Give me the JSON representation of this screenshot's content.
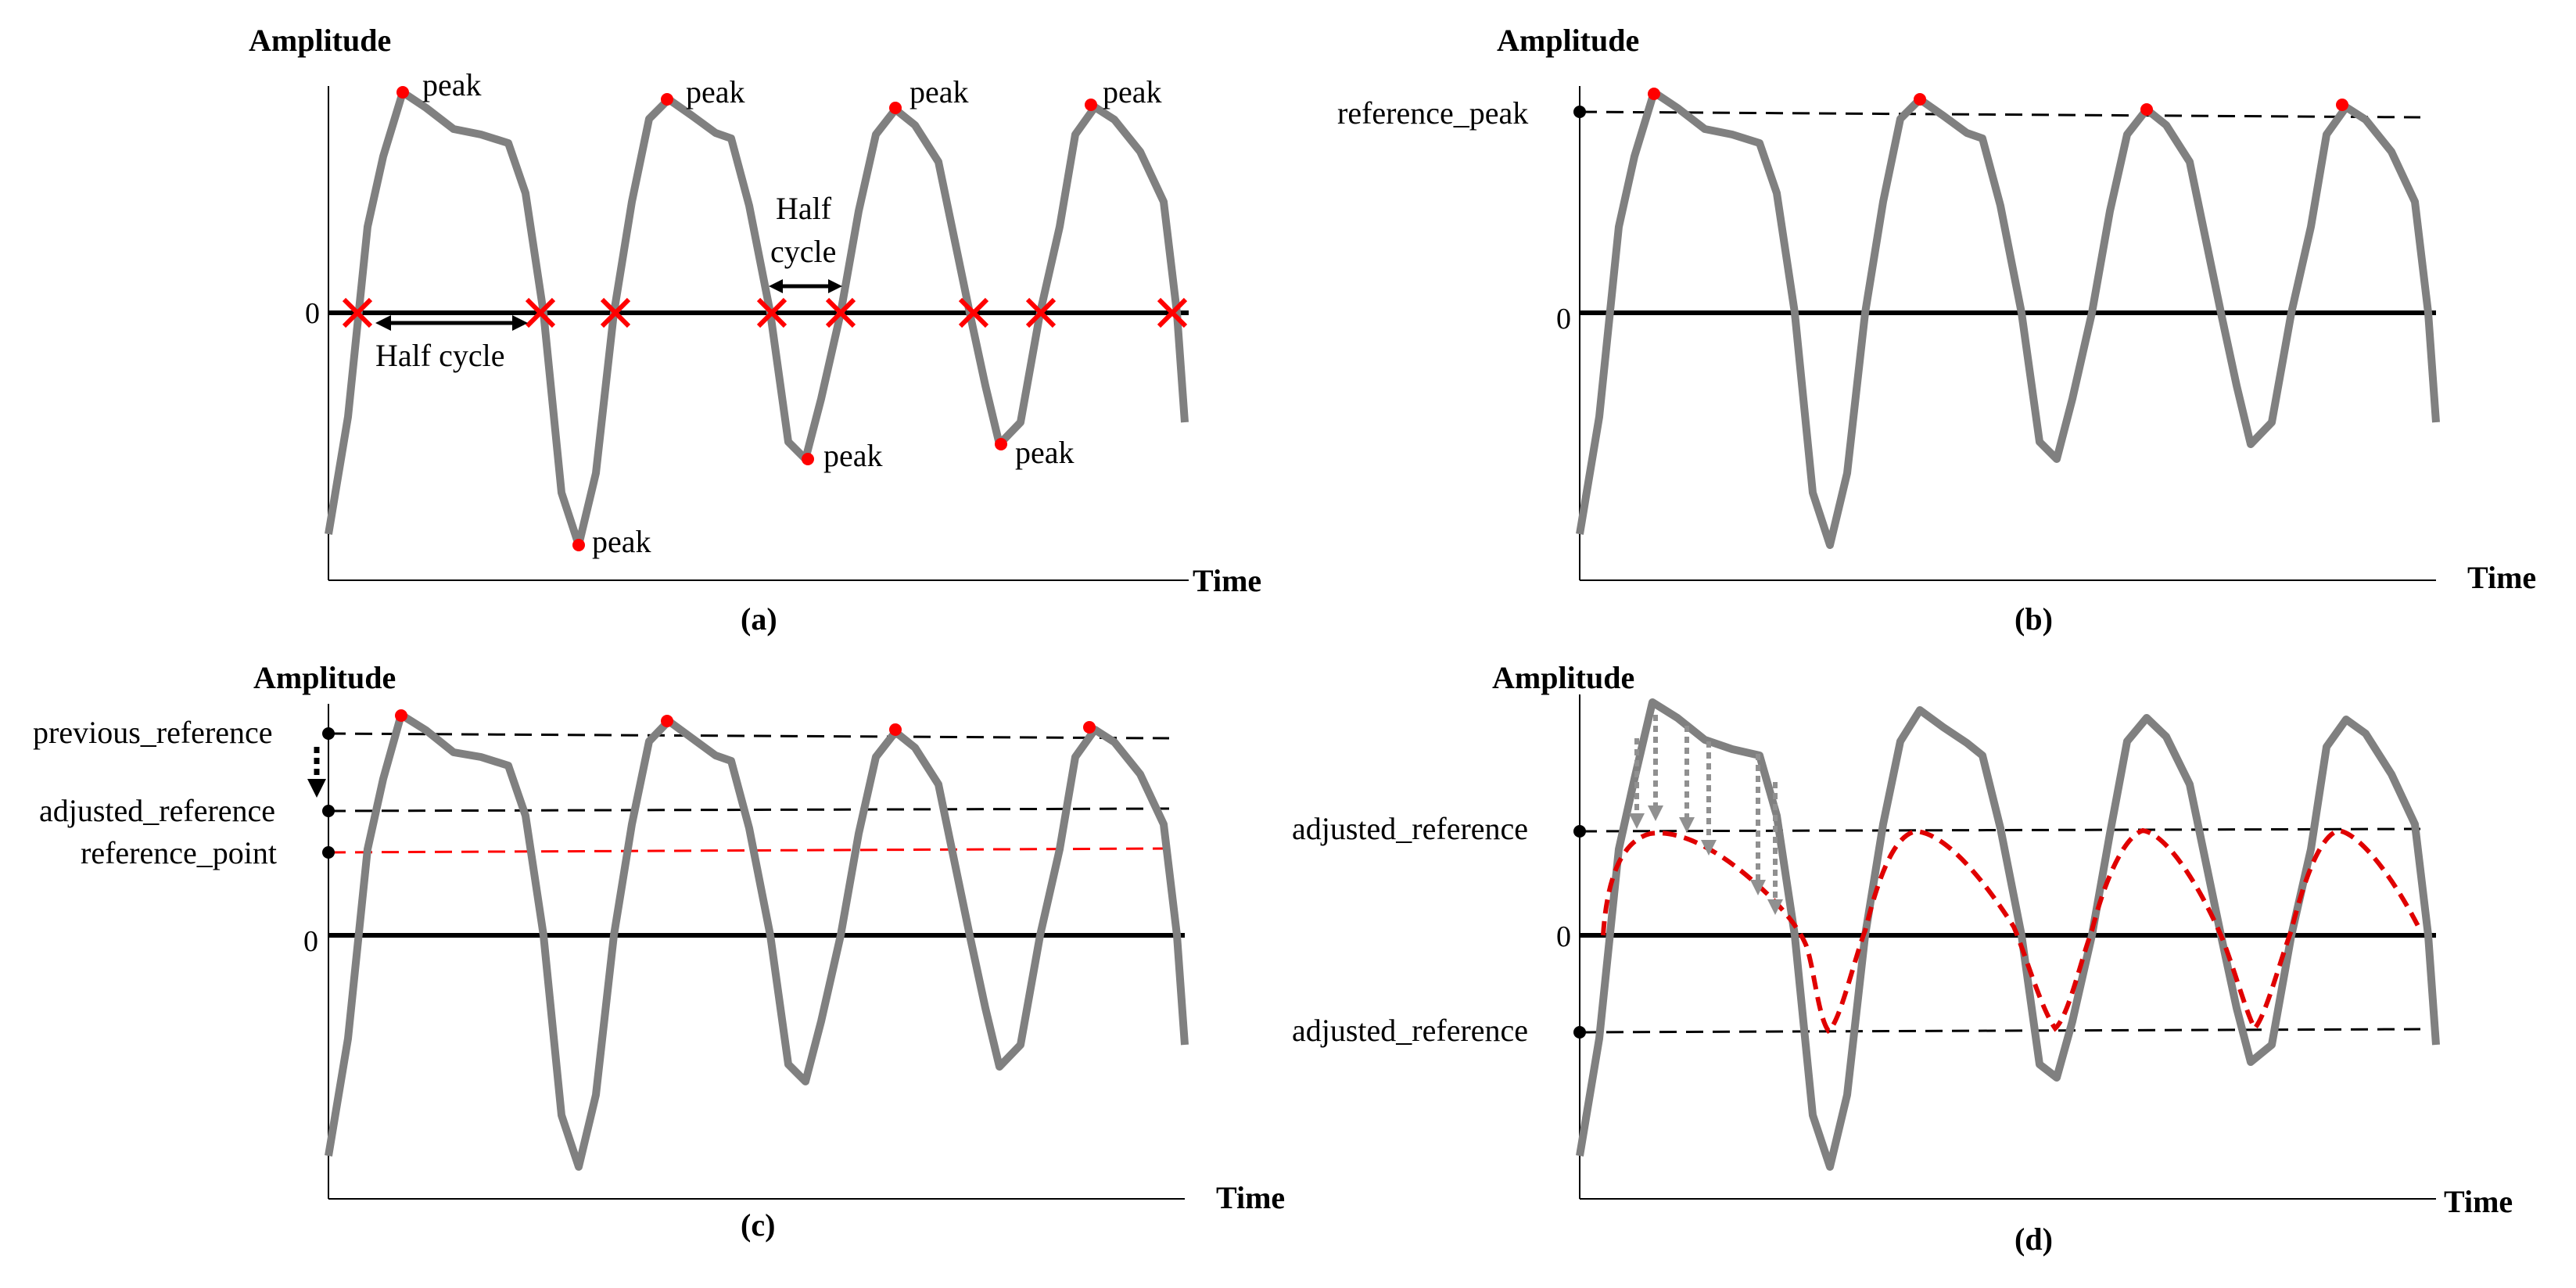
{
  "labels": {
    "amplitude": "Amplitude",
    "time": "Time",
    "zero": "0",
    "peak": "peak",
    "half_cycle": "Half cycle",
    "half_cycle_line1": "Half",
    "half_cycle_line2": "cycle",
    "reference_peak": "reference_peak",
    "previous_reference": "previous_reference",
    "adjusted_reference": "adjusted_reference",
    "reference_point": "reference_point"
  },
  "panels": [
    {
      "id": "a",
      "caption": "(a)"
    },
    {
      "id": "b",
      "caption": "(b)"
    },
    {
      "id": "c",
      "caption": "(c)"
    },
    {
      "id": "d",
      "caption": "(d)"
    }
  ],
  "colors": {
    "signal": "#808080",
    "axis": "#000000",
    "marker": "#ff0000",
    "reference": "#000000",
    "adjusted_signal": "#e00000",
    "shift_arrow": "#909090"
  },
  "signal": {
    "t": [
      0,
      0.04,
      0.08,
      0.12,
      0.17,
      0.22,
      0.27,
      0.3,
      0.32,
      0.34,
      0.36,
      0.38,
      0.4,
      0.42,
      0.44,
      0.46,
      0.48,
      0.5,
      0.52,
      0.54,
      0.56,
      0.58,
      0.6,
      0.62,
      0.64,
      0.66,
      0.68,
      0.7,
      0.72,
      0.74,
      0.76,
      0.78,
      0.8,
      0.82,
      0.84,
      0.86,
      0.88,
      0.9,
      0.92,
      0.94,
      0.96,
      0.98,
      1.0
    ],
    "amplitude": [
      -0.88,
      0.35,
      0.86,
      0.92,
      0.98,
      0.93,
      0.9,
      0.87,
      0.86,
      0.84,
      0.82,
      0.8,
      0.74,
      0.55,
      0.05,
      -0.6,
      -1.0,
      -0.86,
      -0.4,
      0.4,
      0.88,
      0.92,
      0.8,
      0.75,
      0.6,
      0.1,
      -0.55,
      -0.6,
      -0.4,
      0.0,
      0.5,
      0.82,
      0.92,
      0.88,
      0.7,
      0.1,
      -0.4,
      -0.6,
      -0.5,
      -0.2,
      0.4,
      0.84,
      -0.4
    ]
  }
}
